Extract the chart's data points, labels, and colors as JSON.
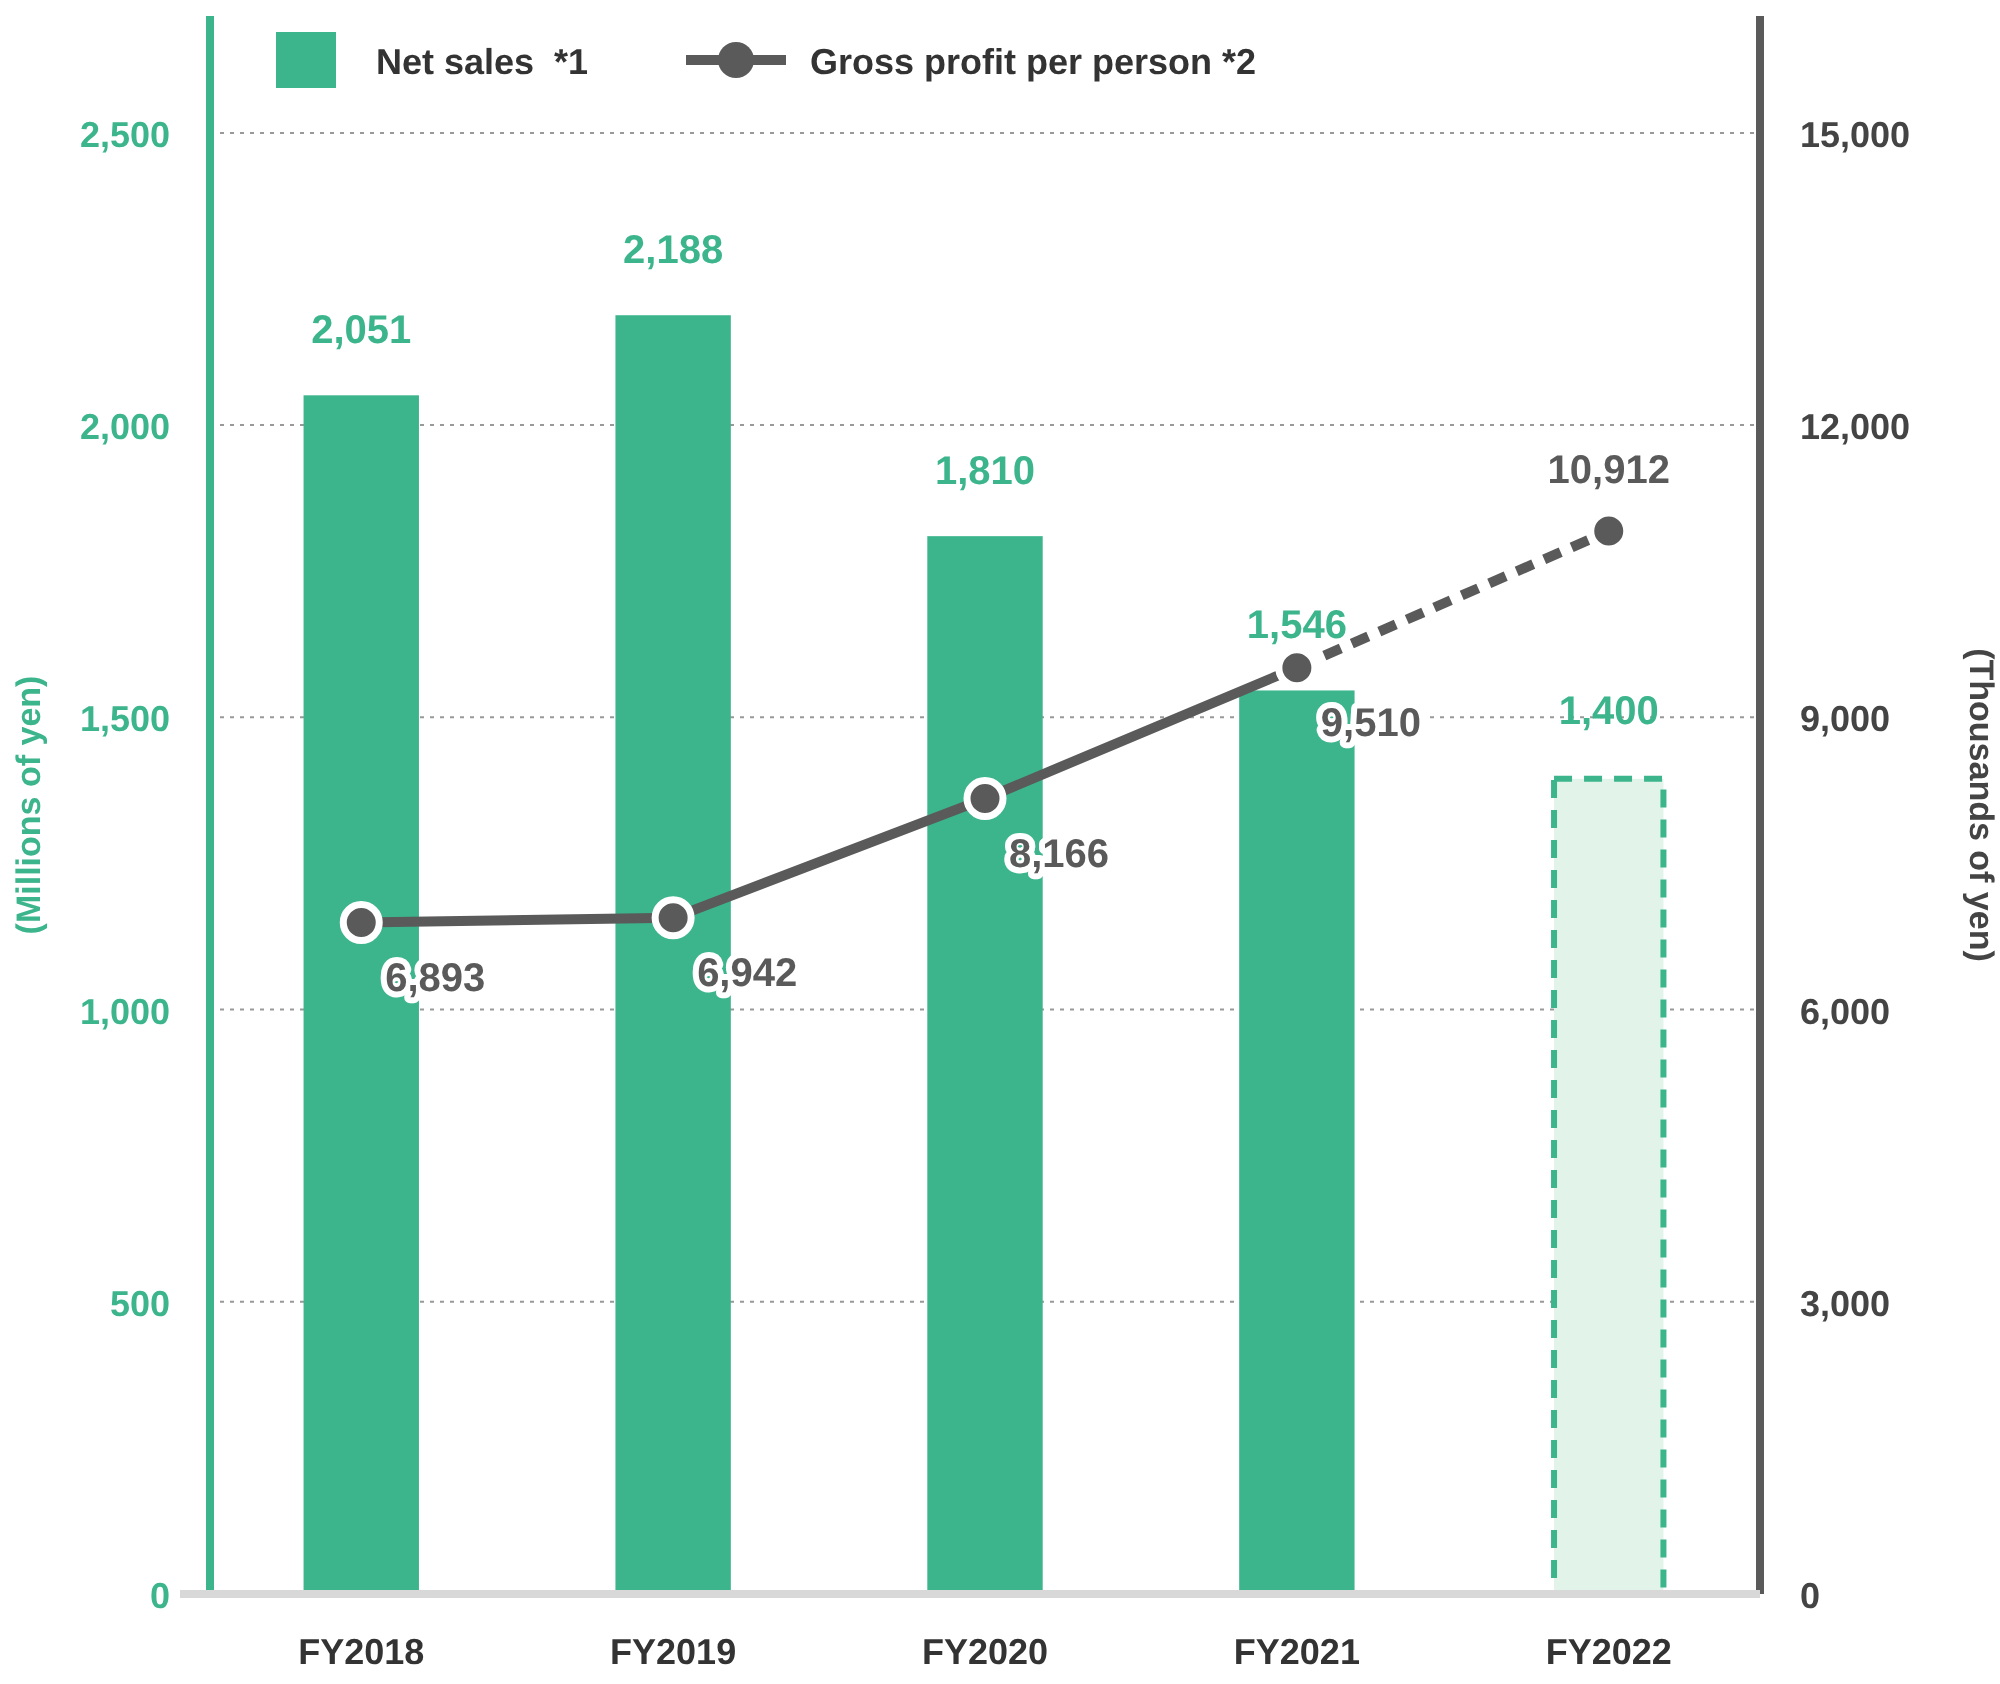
{
  "chart_data": {
    "type": "bar",
    "categories": [
      "FY2018",
      "FY2019",
      "FY2020",
      "FY2021",
      "FY2022"
    ],
    "ylabel": "(Millions of yen)",
    "y2label": "(Thousands of yen)",
    "ylim": [
      0,
      2700
    ],
    "yticks": [
      0,
      {
        "value": 500,
        "label": "500"
      },
      {
        "value": 1000,
        "label": "1,000"
      },
      {
        "value": 1500,
        "label": "1,500"
      },
      {
        "value": 2000,
        "label": "2,000"
      },
      {
        "value": 2500,
        "label": "2,500"
      }
    ],
    "y2lim": [
      0,
      16200
    ],
    "y2ticks": [
      0,
      {
        "value": 3000,
        "label": "3,000"
      },
      {
        "value": 6000,
        "label": "6,000"
      },
      {
        "value": 9000,
        "label": "9,000"
      },
      {
        "value": 12000,
        "label": "12,000"
      },
      {
        "value": 15000,
        "label": "15,000"
      }
    ],
    "grid": "y",
    "legend": "top left",
    "series": [
      {
        "name": "Net sales  *1",
        "color": "#3db58c",
        "values": [
          2051,
          2188,
          1810,
          1546,
          null
        ],
        "value_labels": [
          "2,051",
          "2,188",
          "1,810",
          "1,546",
          null
        ]
      },
      {
        "color": "#e2f3ea",
        "line_style": "dashed",
        "values": [
          null,
          null,
          null,
          null,
          1400
        ],
        "value_labels": [
          null,
          null,
          null,
          null,
          "1,400"
        ]
      },
      {
        "type": "line",
        "axis": "y2",
        "name": "Gross profit per person *2",
        "color": "#5a5a5a",
        "marker": "circle",
        "values": [
          6893,
          6942,
          8166,
          9510,
          null
        ],
        "value_labels": [
          "6,893",
          "6,942",
          "8,166",
          "9,510",
          null
        ]
      },
      {
        "type": "line",
        "axis": "y2",
        "color": "#5a5a5a",
        "line_style": "dashed",
        "marker": "circle",
        "values": [
          null,
          null,
          null,
          9510,
          10912
        ],
        "value_labels": [
          null,
          null,
          null,
          null,
          "10,912"
        ]
      }
    ]
  }
}
